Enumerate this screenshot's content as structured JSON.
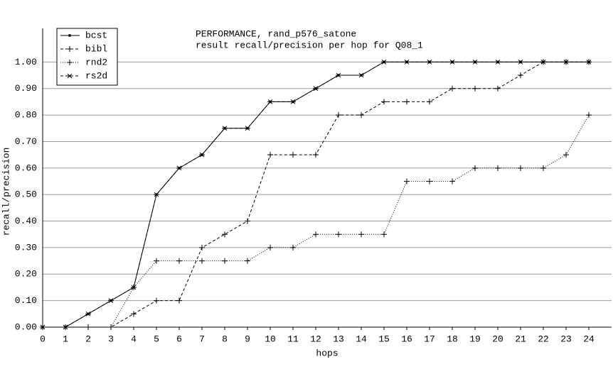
{
  "chart_data": {
    "type": "line",
    "title": "PERFORMANCE, rand_p576_satone",
    "subtitle": "result recall/precision per hop for Q08_1",
    "x_label": "hops",
    "y_label": "recall/precision",
    "x": [
      0,
      1,
      2,
      3,
      4,
      5,
      6,
      7,
      8,
      9,
      10,
      11,
      12,
      13,
      14,
      15,
      16,
      17,
      18,
      19,
      20,
      21,
      22,
      23,
      24
    ],
    "series": [
      {
        "name": "bcst",
        "color": "#000000",
        "dash": "solid",
        "marker": "dot",
        "values": [
          0,
          0,
          0.05,
          0.1,
          0.15,
          0.5,
          0.6,
          0.65,
          0.75,
          0.75,
          0.85,
          0.85,
          0.9,
          0.95,
          0.95,
          1,
          1,
          1,
          1,
          1,
          1,
          1,
          1,
          1,
          1
        ]
      },
      {
        "name": "bibl",
        "color": "#000000",
        "dash": "dashed",
        "marker": "plus",
        "values": [
          0,
          0,
          0,
          0,
          0.05,
          0.1,
          0.1,
          0.3,
          0.35,
          0.4,
          0.65,
          0.65,
          0.65,
          0.8,
          0.8,
          0.85,
          0.85,
          0.85,
          0.9,
          0.9,
          0.9,
          0.95,
          1,
          1,
          1
        ]
      },
      {
        "name": "rnd2",
        "color": "#000000",
        "dash": "dotted",
        "marker": "plus",
        "values": [
          0,
          0,
          0,
          0,
          0.15,
          0.25,
          0.25,
          0.25,
          0.25,
          0.25,
          0.3,
          0.3,
          0.35,
          0.35,
          0.35,
          0.35,
          0.55,
          0.55,
          0.55,
          0.6,
          0.6,
          0.6,
          0.6,
          0.65,
          0.8
        ]
      },
      {
        "name": "rs2d",
        "color": "#000000",
        "dash": "dashed",
        "marker": "star",
        "values": [
          0,
          0,
          0.05,
          0.1,
          0.15,
          0.5,
          0.6,
          0.65,
          0.75,
          0.75,
          0.85,
          0.85,
          0.9,
          0.95,
          0.95,
          1,
          1,
          1,
          1,
          1,
          1,
          1,
          1,
          1,
          1
        ]
      }
    ],
    "xlim": [
      0,
      25
    ],
    "xticks": [
      0,
      1,
      2,
      3,
      4,
      5,
      6,
      7,
      8,
      9,
      10,
      11,
      12,
      13,
      14,
      15,
      16,
      17,
      18,
      19,
      20,
      21,
      22,
      23,
      24
    ],
    "ylim": [
      0,
      1.1
    ],
    "yticks": [
      {
        "value": 0,
        "label": "0.00"
      },
      {
        "value": 0.1,
        "label": "0.10"
      },
      {
        "value": 0.2,
        "label": "0.20"
      },
      {
        "value": 0.3,
        "label": "0.30"
      },
      {
        "value": 0.4,
        "label": "0.40"
      },
      {
        "value": 0.5,
        "label": "0.50"
      },
      {
        "value": 0.6,
        "label": "0.60"
      },
      {
        "value": 0.7,
        "label": "0.70"
      },
      {
        "value": 0.8,
        "label": "0.80"
      },
      {
        "value": 0.9,
        "label": "0.90"
      },
      {
        "value": 1,
        "label": "1.00"
      }
    ],
    "grid": true,
    "legend": "top-left"
  }
}
